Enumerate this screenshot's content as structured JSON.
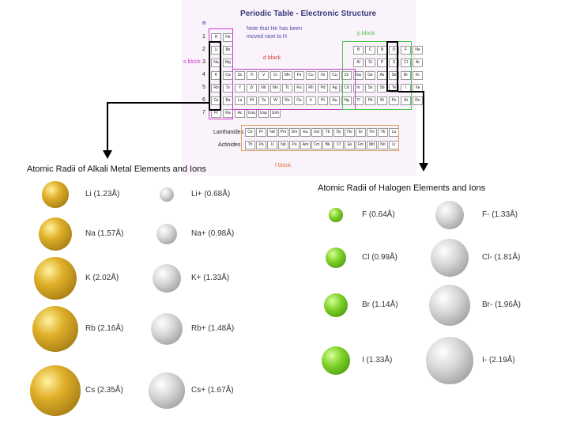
{
  "periodic_table": {
    "title": "Periodic Table - Electronic Structure",
    "note": "Note that He has been moved next to H",
    "n_label": "n",
    "row_numbers": [
      "1",
      "2",
      "3",
      "4",
      "5",
      "6",
      "7"
    ],
    "s_block_label": "s block",
    "d_block_label": "d block",
    "p_block_label": "p block",
    "f_block_label": "f block",
    "lanthanides_label": "Lanthanides",
    "actinides_label": "Actinides",
    "rows": [
      [
        "H",
        "He"
      ],
      [
        "Li",
        "Be",
        "B",
        "C",
        "N",
        "O",
        "F",
        "Ne"
      ],
      [
        "Na",
        "Mg",
        "Al",
        "Si",
        "P",
        "S",
        "Cl",
        "Ar"
      ],
      [
        "K",
        "Ca",
        "Sc",
        "Ti",
        "V",
        "Cr",
        "Mn",
        "Fe",
        "Co",
        "Ni",
        "Cu",
        "Zn",
        "Ga",
        "Ge",
        "As",
        "Se",
        "Br",
        "Kr"
      ],
      [
        "Rb",
        "Sr",
        "Y",
        "Zr",
        "Nb",
        "Mo",
        "Tc",
        "Ru",
        "Rh",
        "Pd",
        "Ag",
        "Cd",
        "In",
        "Sn",
        "Sb",
        "Te",
        "I",
        "Xe"
      ],
      [
        "Cs",
        "Ba",
        "La",
        "Hf",
        "Ta",
        "W",
        "Re",
        "Os",
        "Ir",
        "Pt",
        "Au",
        "Hg",
        "Tl",
        "Pb",
        "Bi",
        "Po",
        "At",
        "Rn"
      ],
      [
        "Fr",
        "Ra",
        "Ac",
        "Unq",
        "Unp",
        "Unh"
      ]
    ],
    "lanthanides": [
      "Ce",
      "Pr",
      "Nd",
      "Pm",
      "Sm",
      "Eu",
      "Gd",
      "Tb",
      "Dy",
      "Ho",
      "Er",
      "Tm",
      "Yb",
      "Lu"
    ],
    "actinides": [
      "Th",
      "Pa",
      "U",
      "Np",
      "Pu",
      "Am",
      "Cm",
      "Bk",
      "Cf",
      "Es",
      "Fm",
      "Md",
      "No",
      "Lr"
    ]
  },
  "alkali": {
    "title": "Atomic Radii of Alkali Metal Elements and Ions",
    "items": [
      {
        "atom": "Li (1.23Å)",
        "ion": "Li+ (0.68Å)",
        "atom_radius": 1.23,
        "ion_radius": 0.68
      },
      {
        "atom": "Na (1.57Å)",
        "ion": "Na+ (0.98Å)",
        "atom_radius": 1.57,
        "ion_radius": 0.98
      },
      {
        "atom": "K (2.02Å)",
        "ion": "K+ (1.33Å)",
        "atom_radius": 2.02,
        "ion_radius": 1.33
      },
      {
        "atom": "Rb (2.16Å)",
        "ion": "Rb+ (1.48Å)",
        "atom_radius": 2.16,
        "ion_radius": 1.48
      },
      {
        "atom": "Cs (2.35Å)",
        "ion": "Cs+ (1.67Å)",
        "atom_radius": 2.35,
        "ion_radius": 1.67
      }
    ]
  },
  "halogen": {
    "title": "Atomic Radii of Halogen Elements and Ions",
    "items": [
      {
        "atom": "F (0.64Å)",
        "ion": "F- (1.33Å)",
        "atom_radius": 0.64,
        "ion_radius": 1.33
      },
      {
        "atom": "Cl (0.99Å)",
        "ion": "Cl- (1.81Å)",
        "atom_radius": 0.99,
        "ion_radius": 1.81
      },
      {
        "atom": "Br (1.14Å)",
        "ion": "Br- (1.96Å)",
        "atom_radius": 1.14,
        "ion_radius": 1.96
      },
      {
        "atom": "I (1.33Å)",
        "ion": "I- (2.19Å)",
        "atom_radius": 1.33,
        "ion_radius": 2.19
      }
    ]
  },
  "colors": {
    "alkali_atom": "#c9a21a",
    "ion": "#b8b8b8",
    "halogen_atom": "#6cc21a",
    "s_block": "#d23ad2",
    "d_block": "#c040c0",
    "p_block": "#4ac84a",
    "f_block": "#e0a060",
    "highlight": "#000000"
  }
}
